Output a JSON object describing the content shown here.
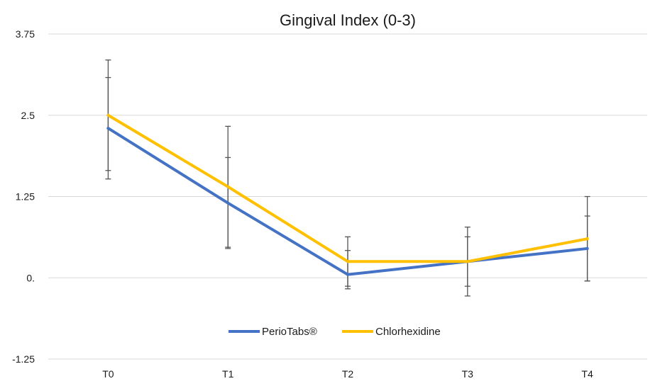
{
  "chart_data": {
    "type": "line",
    "title": "Gingival Index (0-3)",
    "xlabel": "",
    "ylabel": "",
    "categories": [
      "T0",
      "T1",
      "T2",
      "T3",
      "T4"
    ],
    "ylim": [
      -1.25,
      3.75
    ],
    "yticks": [
      {
        "value": 3.75,
        "label": "3.75"
      },
      {
        "value": 2.5,
        "label": "2.5"
      },
      {
        "value": 1.25,
        "label": "1.25"
      },
      {
        "value": 0,
        "label": "0."
      },
      {
        "value": -1.25,
        "label": "-1.25"
      }
    ],
    "grid": true,
    "legend_position": "bottom",
    "error_bars": true,
    "series": [
      {
        "name": "PerioTabs®",
        "color": "#4472C4",
        "values": [
          2.3,
          1.15,
          0.05,
          0.25,
          0.45
        ],
        "err_low": [
          0.78,
          0.7,
          0.22,
          0.53,
          0.5
        ],
        "err_high": [
          0.78,
          0.7,
          0.37,
          0.53,
          0.5
        ]
      },
      {
        "name": "Chlorhexidine",
        "color": "#FFC000",
        "values": [
          2.5,
          1.4,
          0.25,
          0.25,
          0.6
        ],
        "err_low": [
          0.85,
          0.93,
          0.38,
          0.38,
          0.65
        ],
        "err_high": [
          0.85,
          0.93,
          0.38,
          0.38,
          0.65
        ]
      }
    ]
  }
}
